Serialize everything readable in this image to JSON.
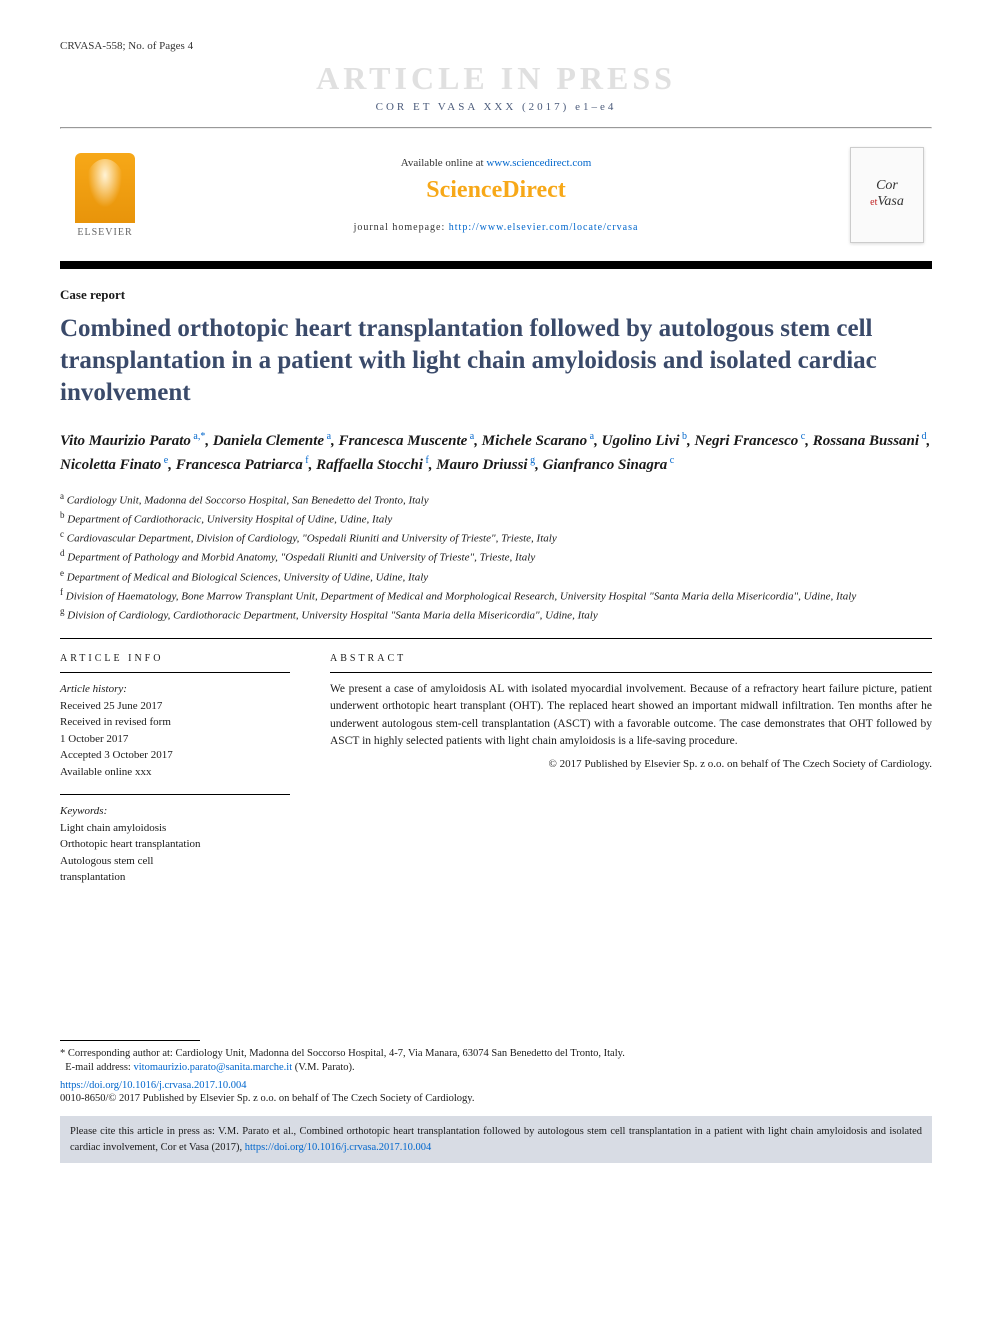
{
  "header_id": "CRVASA-558; No. of Pages 4",
  "watermark": "ARTICLE IN PRESS",
  "journal_ref": "COR ET VASA XXX (2017) e1–e4",
  "banner": {
    "elsevier": "ELSEVIER",
    "available_prefix": "Available online at ",
    "available_link": "www.sciencedirect.com",
    "sd_logo": "ScienceDirect",
    "homepage_prefix": "journal homepage: ",
    "homepage_link": "http://www.elsevier.com/locate/crvasa",
    "journal_cover_name_1": "Cor",
    "journal_cover_et": "et",
    "journal_cover_name_2": "Vasa"
  },
  "article_type": "Case report",
  "title": "Combined orthotopic heart transplantation followed by autologous stem cell transplantation in a patient with light chain amyloidosis and isolated cardiac involvement",
  "authors_html": "Vito Maurizio Parato<sup> a,*</sup>, Daniela Clemente<sup> a</sup>, Francesca Muscente<sup> a</sup>, Michele Scarano<sup> a</sup>, Ugolino Livi<sup> b</sup>, Negri Francesco<sup> c</sup>, Rossana Bussani<sup> d</sup>, Nicoletta Finato<sup> e</sup>, Francesca Patriarca<sup> f</sup>, Raffaella Stocchi<sup> f</sup>, Mauro Driussi<sup> g</sup>, Gianfranco Sinagra<sup> c</sup>",
  "affiliations": [
    {
      "sup": "a",
      "text": "Cardiology Unit, Madonna del Soccorso Hospital, San Benedetto del Tronto, Italy"
    },
    {
      "sup": "b",
      "text": "Department of Cardiothoracic, University Hospital of Udine, Udine, Italy"
    },
    {
      "sup": "c",
      "text": "Cardiovascular Department, Division of Cardiology, \"Ospedali Riuniti and University of Trieste\", Trieste, Italy"
    },
    {
      "sup": "d",
      "text": "Department of Pathology and Morbid Anatomy, \"Ospedali Riuniti and University of Trieste\", Trieste, Italy"
    },
    {
      "sup": "e",
      "text": "Department of Medical and Biological Sciences, University of Udine, Udine, Italy"
    },
    {
      "sup": "f",
      "text": "Division of Haematology, Bone Marrow Transplant Unit, Department of Medical and Morphological Research, University Hospital \"Santa Maria della Misericordia\", Udine, Italy"
    },
    {
      "sup": "g",
      "text": "Division of Cardiology, Cardiothoracic Department, University Hospital \"Santa Maria della Misericordia\", Udine, Italy"
    }
  ],
  "info_head": "ARTICLE INFO",
  "abstract_head": "ABSTRACT",
  "history": {
    "label": "Article history:",
    "lines": [
      "Received 25 June 2017",
      "Received in revised form",
      "1 October 2017",
      "Accepted 3 October 2017",
      "Available online xxx"
    ]
  },
  "keywords": {
    "label": "Keywords:",
    "lines": [
      "Light chain amyloidosis",
      "Orthotopic heart transplantation",
      "Autologous stem cell",
      "transplantation"
    ]
  },
  "abstract_text": "We present a case of amyloidosis AL with isolated myocardial involvement. Because of a refractory heart failure picture, patient underwent orthotopic heart transplant (OHT). The replaced heart showed an important midwall infiltration. Ten months after he underwent autologous stem-cell transplantation (ASCT) with a favorable outcome. The case demonstrates that OHT followed by ASCT in highly selected patients with light chain amyloidosis is a life-saving procedure.",
  "copyright": "© 2017 Published by Elsevier Sp. z o.o. on behalf of The Czech Society of Cardiology.",
  "footer": {
    "corresponding_prefix": "* Corresponding author at: ",
    "corresponding_text": "Cardiology Unit, Madonna del Soccorso Hospital, 4-7, Via Manara, 63074 San Benedetto del Tronto, Italy.",
    "email_label": "E-mail address: ",
    "email": "vitomaurizio.parato@sanita.marche.it",
    "email_suffix": " (V.M. Parato).",
    "doi": "https://doi.org/10.1016/j.crvasa.2017.10.004",
    "issn": "0010-8650/© 2017 Published by Elsevier Sp. z o.o. on behalf of The Czech Society of Cardiology."
  },
  "cite_box": {
    "text_1": "Please cite this article in press as: V.M. Parato et al., Combined orthotopic heart transplantation followed by autologous stem cell transplantation in a patient with light chain amyloidosis and isolated cardiac involvement, Cor et Vasa (2017), ",
    "link": "https://doi.org/10.1016/j.crvasa.2017.10.004"
  },
  "colors": {
    "title": "#3a4a6a",
    "link": "#0066cc",
    "watermark": "#e0e0e0",
    "sd_orange": "#f7a818",
    "cite_bg": "#d8dce4"
  }
}
